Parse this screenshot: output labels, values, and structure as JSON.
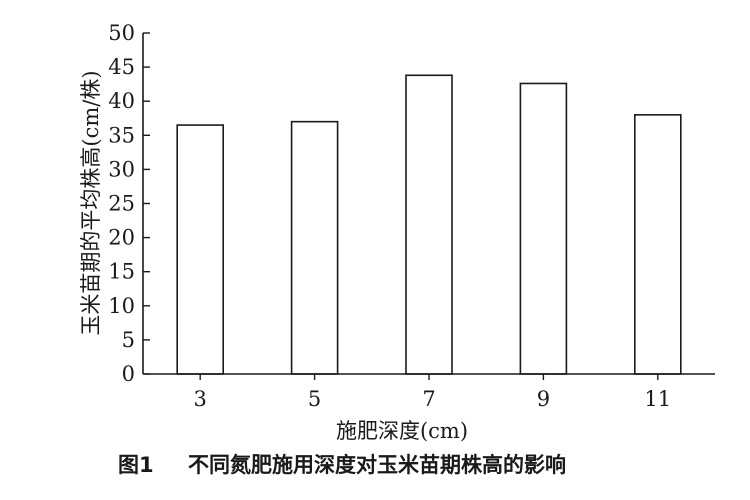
{
  "chart_data": {
    "type": "bar",
    "categories": [
      "3",
      "5",
      "7",
      "9",
      "11"
    ],
    "values": [
      36.5,
      37,
      43.8,
      42.6,
      38
    ],
    "xlabel": "施肥深度(cm)",
    "ylabel": "玉米苗期的平均株高(cm/株)",
    "ylim": [
      0,
      50
    ],
    "yticks": [
      "0",
      "5",
      "10",
      "15",
      "20",
      "25",
      "30",
      "35",
      "40",
      "45",
      "50"
    ],
    "grid": false,
    "caption_label": "图1",
    "caption_text": "不同氮肥施用深度对玉米苗期株高的影响"
  }
}
